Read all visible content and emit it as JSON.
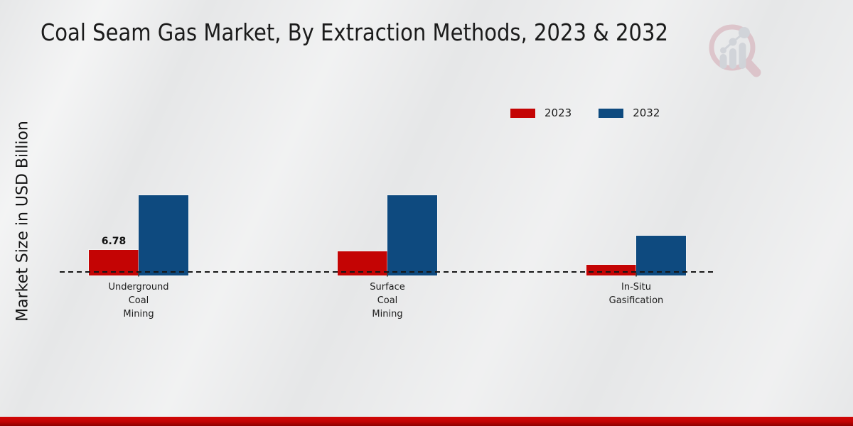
{
  "title": "Coal Seam Gas Market, By Extraction Methods, 2023 & 2032",
  "watermark": {
    "icon": "magnifier-bar-chart-logo"
  },
  "footer": {
    "accent_color": "#c00404"
  },
  "chart_data": {
    "type": "bar",
    "title": "Coal Seam Gas Market, By Extraction Methods, 2023 & 2032",
    "ylabel": "Market Size in USD Billion",
    "categories": [
      "Underground Coal Mining",
      "Surface Coal Mining",
      "In-Situ Gasification"
    ],
    "category_lines": [
      [
        "Underground",
        "Coal",
        "Mining"
      ],
      [
        "Surface",
        "Coal",
        "Mining"
      ],
      [
        "In-Situ",
        "Gasification"
      ]
    ],
    "series": [
      {
        "name": "2023",
        "color": "#c40404",
        "values": [
          6.78,
          6.4,
          2.8
        ]
      },
      {
        "name": "2032",
        "color": "#0e4a7f",
        "values": [
          21.3,
          21.3,
          10.5
        ]
      }
    ],
    "data_labels": [
      {
        "series_index": 0,
        "category_index": 0,
        "text": "6.78"
      }
    ],
    "ylim": [
      0,
      27.5
    ],
    "grid": false,
    "legend_position": "top-right",
    "axis_style": "dashed-baseline-only"
  }
}
